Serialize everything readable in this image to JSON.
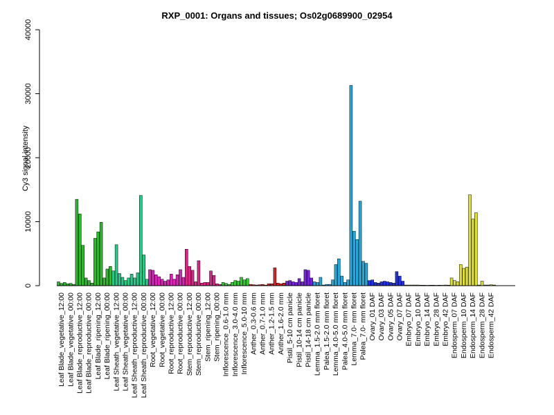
{
  "chart_data": {
    "type": "bar",
    "title": "RXP_0001: Organs and tissues; Os02g0689900_02954",
    "xlabel": "",
    "ylabel": "Cy3 signal intensity",
    "ylim": [
      0,
      40000
    ],
    "yticks": [
      0,
      10000,
      20000,
      30000,
      40000
    ],
    "grid": false,
    "legend": "none",
    "groups": [
      {
        "label": "Leaf Blade_vegetative_12:00",
        "color": "#2db82d",
        "values": [
          600,
          350,
          500
        ]
      },
      {
        "label": "Leaf Blade_vegetative_00:00",
        "color": "#2db82d",
        "values": [
          300,
          350,
          200
        ]
      },
      {
        "label": "Leaf Blade_reproductive_12:00",
        "color": "#2db82d",
        "values": [
          13500,
          11200,
          6300
        ]
      },
      {
        "label": "Leaf Blade_reproductive_00:00",
        "color": "#2db82d",
        "values": [
          1200,
          800,
          400
        ]
      },
      {
        "label": "Leaf Blade_ripening_12:00",
        "color": "#2db82d",
        "values": [
          7400,
          8400,
          9900
        ]
      },
      {
        "label": "Leaf Blade_ripening_00:00",
        "color": "#2db82d",
        "values": [
          1200,
          2600,
          3000
        ]
      },
      {
        "label": "Leaf Sheath_vegetative_12:00",
        "color": "#22cc88",
        "values": [
          2300,
          6400,
          1900
        ]
      },
      {
        "label": "Leaf Sheath_vegetative_00:00",
        "color": "#22cc88",
        "values": [
          1300,
          800,
          1200
        ]
      },
      {
        "label": "Leaf Sheath_reproductive_12:00",
        "color": "#22cc88",
        "values": [
          1800,
          1200,
          2000
        ]
      },
      {
        "label": "Leaf Sheath_reproductive_00:00",
        "color": "#22cc88",
        "values": [
          14100,
          4800,
          1000
        ]
      },
      {
        "label": "Root_vegetative_12:00",
        "color": "#dd22bb",
        "values": [
          2500,
          2400,
          1700
        ]
      },
      {
        "label": "Root_vegetative_00:00",
        "color": "#dd22bb",
        "values": [
          1400,
          1000,
          700
        ]
      },
      {
        "label": "Root_reproductive_12:00",
        "color": "#dd22bb",
        "values": [
          900,
          1800,
          1000
        ]
      },
      {
        "label": "Root_reproductive_00:00",
        "color": "#dd22bb",
        "values": [
          1700,
          2500,
          1300
        ]
      },
      {
        "label": "Stem_reproductive_12:00",
        "color": "#dd2288",
        "values": [
          5700,
          3000,
          2400
        ]
      },
      {
        "label": "Stem_reproductive_00:00",
        "color": "#dd2288",
        "values": [
          600,
          3900,
          400
        ]
      },
      {
        "label": "Stem_ripening_12:00",
        "color": "#dd2288",
        "values": [
          500,
          500,
          2300
        ]
      },
      {
        "label": "Stem_ripening_00:00",
        "color": "#dd2288",
        "values": [
          1600,
          300,
          200
        ]
      },
      {
        "label": "Inflorescence_0.6-1.0 mm",
        "color": "#33cc33",
        "values": [
          500,
          350,
          200
        ]
      },
      {
        "label": "Inflorescence_3.0-4.0 mm",
        "color": "#33cc33",
        "values": [
          500,
          800,
          700
        ]
      },
      {
        "label": "Inflorescence_5.0-10 mm",
        "color": "#33cc33",
        "values": [
          1300,
          900,
          1100
        ]
      },
      {
        "label": "Anther_0.3-0.6 mm",
        "color": "#dd2222",
        "values": [
          200,
          150,
          100
        ]
      },
      {
        "label": "Anther_0.7-1.0 mm",
        "color": "#dd2222",
        "values": [
          150,
          200,
          100
        ]
      },
      {
        "label": "Anther_1.2-1.5 mm",
        "color": "#dd2222",
        "values": [
          300,
          300,
          2800
        ]
      },
      {
        "label": "Anther_1.6-2.0 mm",
        "color": "#dd2222",
        "values": [
          400,
          300,
          400
        ]
      },
      {
        "label": "Pistil_5-10 cm panicle",
        "color": "#7722dd",
        "values": [
          700,
          800,
          600
        ]
      },
      {
        "label": "Pistil_10-14 cm panicle",
        "color": "#7722dd",
        "values": [
          500,
          1100,
          600
        ]
      },
      {
        "label": "Pistil_14-18 cm panicle",
        "color": "#7722dd",
        "values": [
          2500,
          2400,
          1200
        ]
      },
      {
        "label": "Lemma_1.5-2.0 mm floret",
        "color": "#22aadd",
        "values": [
          600,
          500,
          1300
        ]
      },
      {
        "label": "Palea_1.5-2.0 mm floret",
        "color": "#22aadd",
        "values": [
          100,
          200,
          200
        ]
      },
      {
        "label": "Lemma_4.0-5.0 mm floret",
        "color": "#22aadd",
        "values": [
          900,
          3300,
          4200
        ]
      },
      {
        "label": "Palea_4.0-5.0 mm floret",
        "color": "#22aadd",
        "values": [
          1500,
          500,
          900
        ]
      },
      {
        "label": "Lemma_7.0- mm floret",
        "color": "#22aadd",
        "values": [
          31300,
          8500,
          7200
        ]
      },
      {
        "label": "Palea_7.0- mm floret",
        "color": "#22aadd",
        "values": [
          13200,
          3800,
          3500
        ]
      },
      {
        "label": "Ovary_01 DAF",
        "color": "#2233dd",
        "values": [
          800,
          900,
          500
        ]
      },
      {
        "label": "Ovary_03 DAF",
        "color": "#2233dd",
        "values": [
          400,
          600,
          700
        ]
      },
      {
        "label": "Ovary_05 DAF",
        "color": "#2233dd",
        "values": [
          600,
          500,
          400
        ]
      },
      {
        "label": "Ovary_07 DAF",
        "color": "#2233dd",
        "values": [
          2200,
          1500,
          700
        ]
      },
      {
        "label": "Embryo_07 DAF",
        "color": "#cccc22",
        "values": [
          100,
          100,
          100
        ]
      },
      {
        "label": "Embryo_10 DAF",
        "color": "#cccc22",
        "values": [
          100,
          100,
          80
        ]
      },
      {
        "label": "Embryo_14 DAF",
        "color": "#cccc22",
        "values": [
          80,
          60,
          80
        ]
      },
      {
        "label": "Embryo_28 DAF",
        "color": "#cccc22",
        "values": [
          80,
          60,
          80
        ]
      },
      {
        "label": "Embryo_42 DAF",
        "color": "#cccc22",
        "values": [
          60,
          100,
          80
        ]
      },
      {
        "label": "Endosperm_07 DAF",
        "color": "#dddd33",
        "values": [
          1200,
          800,
          600
        ]
      },
      {
        "label": "Endosperm_10 DAF",
        "color": "#dddd33",
        "values": [
          3300,
          2700,
          2900
        ]
      },
      {
        "label": "Endosperm_14 DAF",
        "color": "#dddd33",
        "values": [
          14200,
          10400,
          11400
        ]
      },
      {
        "label": "Endosperm_28 DAF",
        "color": "#dddd33",
        "values": [
          100,
          700,
          100
        ]
      },
      {
        "label": "Endosperm_42 DAF",
        "color": "#dddd33",
        "values": [
          100,
          150,
          100
        ]
      }
    ]
  }
}
